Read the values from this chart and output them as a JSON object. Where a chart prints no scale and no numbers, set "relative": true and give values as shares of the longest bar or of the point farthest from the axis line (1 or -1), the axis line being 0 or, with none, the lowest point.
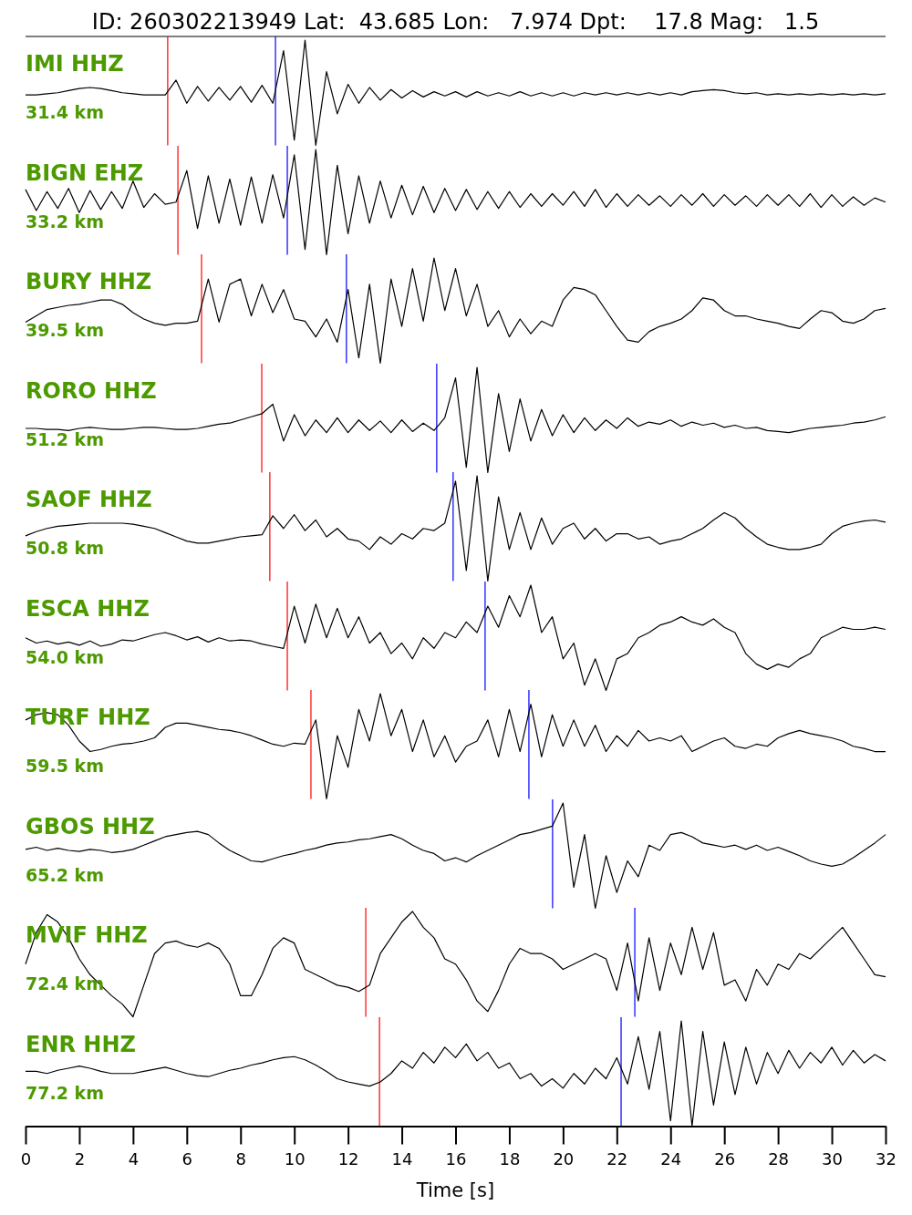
{
  "chart_data": [
    {
      "type": "line",
      "title": "IMI HHZ",
      "subtitle": "31.4 km",
      "annotations": [
        "ID: 260302213949 Lat:  43.685 Lon:   7.974 Dpt:    17.8 Mag:   1.5"
      ],
      "relative": true,
      "xlim": [
        0,
        32
      ],
      "tick_labels": false,
      "x": [
        0,
        0.4,
        0.8,
        1.2,
        1.6,
        2,
        2.4,
        2.8,
        3.2,
        3.6,
        4,
        4.4,
        4.8,
        5.2,
        5.6,
        6,
        6.4,
        6.8,
        7.2,
        7.6,
        8,
        8.4,
        8.8,
        9.2,
        9.6,
        10,
        10.4,
        10.8,
        11.2,
        11.6,
        12,
        12.4,
        12.8,
        13.2,
        13.6,
        14,
        14.4,
        14.8,
        15.2,
        15.6,
        16,
        16.4,
        16.8,
        17.2,
        17.6,
        18,
        18.4,
        18.8,
        19.2,
        19.6,
        20,
        20.4,
        20.8,
        21.2,
        21.6,
        22,
        22.4,
        22.8,
        23.2,
        23.6,
        24,
        24.4,
        24.8,
        25.2,
        25.6,
        26,
        26.4,
        26.8,
        27.2,
        27.6,
        28,
        28.4,
        28.8,
        29.2,
        29.6,
        30,
        30.4,
        30.8,
        31.2,
        31.6,
        32
      ],
      "series": [
        {
          "color": "#000000",
          "values": [
            0.48,
            0.48,
            0.49,
            0.5,
            0.52,
            0.54,
            0.55,
            0.54,
            0.52,
            0.5,
            0.49,
            0.48,
            0.48,
            0.48,
            0.62,
            0.4,
            0.56,
            0.42,
            0.55,
            0.43,
            0.56,
            0.41,
            0.57,
            0.4,
            0.9,
            0.05,
            1,
            0,
            0.7,
            0.3,
            0.58,
            0.4,
            0.55,
            0.43,
            0.53,
            0.45,
            0.52,
            0.46,
            0.51,
            0.47,
            0.51,
            0.46,
            0.51,
            0.47,
            0.5,
            0.47,
            0.51,
            0.47,
            0.5,
            0.47,
            0.5,
            0.47,
            0.5,
            0.48,
            0.5,
            0.48,
            0.5,
            0.48,
            0.5,
            0.48,
            0.5,
            0.48,
            0.51,
            0.52,
            0.53,
            0.52,
            0.5,
            0.49,
            0.5,
            0.48,
            0.49,
            0.48,
            0.49,
            0.48,
            0.49,
            0.48,
            0.49,
            0.48,
            0.49,
            0.48,
            0.49
          ]
        }
      ],
      "ref_lines": [
        {
          "axis": "x",
          "value": 5.29,
          "color": "#ff0000"
        },
        {
          "axis": "x",
          "value": 9.3,
          "color": "#0000ff"
        }
      ]
    },
    {
      "type": "line",
      "title": "BIGN EHZ",
      "subtitle": "33.2 km",
      "relative": true,
      "xlim": [
        0,
        32
      ],
      "tick_labels": false,
      "x": [
        0,
        0.4,
        0.8,
        1.2,
        1.6,
        2,
        2.4,
        2.8,
        3.2,
        3.6,
        4,
        4.4,
        4.8,
        5.2,
        5.6,
        6,
        6.4,
        6.8,
        7.2,
        7.6,
        8,
        8.4,
        8.8,
        9.2,
        9.6,
        10,
        10.4,
        10.8,
        11.2,
        11.6,
        12,
        12.4,
        12.8,
        13.2,
        13.6,
        14,
        14.4,
        14.8,
        15.2,
        15.6,
        16,
        16.4,
        16.8,
        17.2,
        17.6,
        18,
        18.4,
        18.8,
        19.2,
        19.6,
        20,
        20.4,
        20.8,
        21.2,
        21.6,
        22,
        22.4,
        22.8,
        23.2,
        23.6,
        24,
        24.4,
        24.8,
        25.2,
        25.6,
        26,
        26.4,
        26.8,
        27.2,
        27.6,
        28,
        28.4,
        28.8,
        29.2,
        29.6,
        30,
        30.4,
        30.8,
        31.2,
        31.6,
        32
      ],
      "series": [
        {
          "color": "#000000",
          "values": [
            0.62,
            0.42,
            0.6,
            0.44,
            0.63,
            0.4,
            0.61,
            0.43,
            0.6,
            0.44,
            0.7,
            0.45,
            0.58,
            0.48,
            0.5,
            0.8,
            0.25,
            0.75,
            0.3,
            0.72,
            0.28,
            0.74,
            0.3,
            0.76,
            0.35,
            0.95,
            0.05,
            1,
            0,
            0.85,
            0.2,
            0.75,
            0.3,
            0.7,
            0.35,
            0.66,
            0.38,
            0.65,
            0.4,
            0.63,
            0.42,
            0.62,
            0.43,
            0.6,
            0.44,
            0.6,
            0.45,
            0.58,
            0.46,
            0.58,
            0.47,
            0.6,
            0.46,
            0.62,
            0.45,
            0.58,
            0.46,
            0.57,
            0.47,
            0.56,
            0.46,
            0.57,
            0.47,
            0.58,
            0.46,
            0.57,
            0.47,
            0.56,
            0.46,
            0.57,
            0.47,
            0.57,
            0.46,
            0.58,
            0.45,
            0.57,
            0.46,
            0.55,
            0.47,
            0.54,
            0.5
          ]
        }
      ],
      "ref_lines": [
        {
          "axis": "x",
          "value": 5.67,
          "color": "#ff0000"
        },
        {
          "axis": "x",
          "value": 9.74,
          "color": "#0000ff"
        }
      ]
    },
    {
      "type": "line",
      "title": "BURY HHZ",
      "subtitle": "39.5 km",
      "relative": true,
      "xlim": [
        0,
        32
      ],
      "tick_labels": false,
      "x": [
        0,
        0.4,
        0.8,
        1.2,
        1.6,
        2,
        2.4,
        2.8,
        3.2,
        3.6,
        4,
        4.4,
        4.8,
        5.2,
        5.6,
        6,
        6.4,
        6.8,
        7.2,
        7.6,
        8,
        8.4,
        8.8,
        9.2,
        9.6,
        10,
        10.4,
        10.8,
        11.2,
        11.6,
        12,
        12.4,
        12.8,
        13.2,
        13.6,
        14,
        14.4,
        14.8,
        15.2,
        15.6,
        16,
        16.4,
        16.8,
        17.2,
        17.6,
        18,
        18.4,
        18.8,
        19.2,
        19.6,
        20,
        20.4,
        20.8,
        21.2,
        21.6,
        22,
        22.4,
        22.8,
        23.2,
        23.6,
        24,
        24.4,
        24.8,
        25.2,
        25.6,
        26,
        26.4,
        26.8,
        27.2,
        27.6,
        28,
        28.4,
        28.8,
        29.2,
        29.6,
        30,
        30.4,
        30.8,
        31.2,
        31.6,
        32
      ],
      "series": [
        {
          "color": "#000000",
          "values": [
            0.39,
            0.45,
            0.51,
            0.53,
            0.55,
            0.56,
            0.58,
            0.6,
            0.6,
            0.56,
            0.48,
            0.42,
            0.38,
            0.36,
            0.38,
            0.38,
            0.4,
            0.8,
            0.39,
            0.75,
            0.8,
            0.45,
            0.75,
            0.48,
            0.7,
            0.42,
            0.4,
            0.25,
            0.42,
            0.2,
            0.7,
            0.05,
            0.75,
            0,
            0.8,
            0.35,
            0.9,
            0.4,
            1,
            0.5,
            0.9,
            0.45,
            0.75,
            0.35,
            0.5,
            0.25,
            0.42,
            0.28,
            0.4,
            0.35,
            0.6,
            0.72,
            0.7,
            0.65,
            0.5,
            0.35,
            0.22,
            0.2,
            0.3,
            0.35,
            0.38,
            0.42,
            0.5,
            0.62,
            0.6,
            0.5,
            0.45,
            0.45,
            0.42,
            0.4,
            0.38,
            0.35,
            0.33,
            0.42,
            0.5,
            0.48,
            0.4,
            0.38,
            0.42,
            0.5,
            0.52
          ]
        }
      ],
      "ref_lines": [
        {
          "axis": "x",
          "value": 6.55,
          "color": "#ff0000"
        },
        {
          "axis": "x",
          "value": 11.94,
          "color": "#0000ff"
        }
      ]
    },
    {
      "type": "line",
      "title": "RORO HHZ",
      "subtitle": "51.2 km",
      "relative": true,
      "xlim": [
        0,
        32
      ],
      "tick_labels": false,
      "x": [
        0,
        0.4,
        0.8,
        1.2,
        1.6,
        2,
        2.4,
        2.8,
        3.2,
        3.6,
        4,
        4.4,
        4.8,
        5.2,
        5.6,
        6,
        6.4,
        6.8,
        7.2,
        7.6,
        8,
        8.4,
        8.8,
        9.2,
        9.6,
        10,
        10.4,
        10.8,
        11.2,
        11.6,
        12,
        12.4,
        12.8,
        13.2,
        13.6,
        14,
        14.4,
        14.8,
        15.2,
        15.6,
        16,
        16.4,
        16.8,
        17.2,
        17.6,
        18,
        18.4,
        18.8,
        19.2,
        19.6,
        20,
        20.4,
        20.8,
        21.2,
        21.6,
        22,
        22.4,
        22.8,
        23.2,
        23.6,
        24,
        24.4,
        24.8,
        25.2,
        25.6,
        26,
        26.4,
        26.8,
        27.2,
        27.6,
        28,
        28.4,
        28.8,
        29.2,
        29.6,
        30,
        30.4,
        30.8,
        31.2,
        31.6,
        32
      ],
      "series": [
        {
          "color": "#000000",
          "values": [
            0.42,
            0.42,
            0.41,
            0.41,
            0.4,
            0.42,
            0.43,
            0.42,
            0.41,
            0.41,
            0.42,
            0.43,
            0.43,
            0.42,
            0.41,
            0.41,
            0.42,
            0.44,
            0.46,
            0.47,
            0.5,
            0.53,
            0.56,
            0.65,
            0.3,
            0.55,
            0.35,
            0.5,
            0.38,
            0.52,
            0.38,
            0.5,
            0.4,
            0.49,
            0.38,
            0.5,
            0.39,
            0.47,
            0.4,
            0.52,
            0.9,
            0.05,
            1,
            0,
            0.75,
            0.2,
            0.7,
            0.3,
            0.6,
            0.35,
            0.55,
            0.38,
            0.52,
            0.4,
            0.5,
            0.42,
            0.52,
            0.44,
            0.48,
            0.46,
            0.5,
            0.44,
            0.48,
            0.45,
            0.47,
            0.43,
            0.45,
            0.42,
            0.43,
            0.4,
            0.39,
            0.38,
            0.4,
            0.42,
            0.43,
            0.44,
            0.45,
            0.47,
            0.48,
            0.5,
            0.53
          ]
        }
      ],
      "ref_lines": [
        {
          "axis": "x",
          "value": 8.79,
          "color": "#ff0000"
        },
        {
          "axis": "x",
          "value": 15.3,
          "color": "#0000ff"
        }
      ]
    },
    {
      "type": "line",
      "title": "SAOF HHZ",
      "subtitle": "50.8 km",
      "relative": true,
      "xlim": [
        0,
        32
      ],
      "tick_labels": false,
      "x": [
        0,
        0.4,
        0.8,
        1.2,
        1.6,
        2,
        2.4,
        2.8,
        3.2,
        3.6,
        4,
        4.4,
        4.8,
        5.2,
        5.6,
        6,
        6.4,
        6.8,
        7.2,
        7.6,
        8,
        8.4,
        8.8,
        9.2,
        9.6,
        10,
        10.4,
        10.8,
        11.2,
        11.6,
        12,
        12.4,
        12.8,
        13.2,
        13.6,
        14,
        14.4,
        14.8,
        15.2,
        15.6,
        16,
        16.4,
        16.8,
        17.2,
        17.6,
        18,
        18.4,
        18.8,
        19.2,
        19.6,
        20,
        20.4,
        20.8,
        21.2,
        21.6,
        22,
        22.4,
        22.8,
        23.2,
        23.6,
        24,
        24.4,
        24.8,
        25.2,
        25.6,
        26,
        26.4,
        26.8,
        27.2,
        27.6,
        28,
        28.4,
        28.8,
        29.2,
        29.6,
        30,
        30.4,
        30.8,
        31.2,
        31.6,
        32
      ],
      "series": [
        {
          "color": "#000000",
          "values": [
            0.43,
            0.47,
            0.5,
            0.52,
            0.53,
            0.54,
            0.55,
            0.55,
            0.55,
            0.55,
            0.54,
            0.52,
            0.5,
            0.46,
            0.42,
            0.38,
            0.36,
            0.36,
            0.38,
            0.4,
            0.42,
            0.43,
            0.44,
            0.62,
            0.5,
            0.63,
            0.48,
            0.58,
            0.42,
            0.5,
            0.4,
            0.38,
            0.3,
            0.42,
            0.35,
            0.45,
            0.4,
            0.5,
            0.48,
            0.55,
            0.95,
            0.1,
            1,
            0,
            0.8,
            0.3,
            0.65,
            0.3,
            0.6,
            0.35,
            0.5,
            0.55,
            0.4,
            0.5,
            0.38,
            0.45,
            0.45,
            0.4,
            0.42,
            0.35,
            0.38,
            0.4,
            0.45,
            0.5,
            0.58,
            0.65,
            0.6,
            0.5,
            0.42,
            0.35,
            0.32,
            0.3,
            0.3,
            0.32,
            0.35,
            0.45,
            0.52,
            0.55,
            0.57,
            0.58,
            0.56
          ]
        }
      ],
      "ref_lines": [
        {
          "axis": "x",
          "value": 9.09,
          "color": "#ff0000"
        },
        {
          "axis": "x",
          "value": 15.91,
          "color": "#0000ff"
        }
      ]
    },
    {
      "type": "line",
      "title": "ESCA HHZ",
      "subtitle": "54.0 km",
      "relative": true,
      "xlim": [
        0,
        32
      ],
      "tick_labels": false,
      "x": [
        0,
        0.4,
        0.8,
        1.2,
        1.6,
        2,
        2.4,
        2.8,
        3.2,
        3.6,
        4,
        4.4,
        4.8,
        5.2,
        5.6,
        6,
        6.4,
        6.8,
        7.2,
        7.6,
        8,
        8.4,
        8.8,
        9.2,
        9.6,
        10,
        10.4,
        10.8,
        11.2,
        11.6,
        12,
        12.4,
        12.8,
        13.2,
        13.6,
        14,
        14.4,
        14.8,
        15.2,
        15.6,
        16,
        16.4,
        16.8,
        17.2,
        17.6,
        18,
        18.4,
        18.8,
        19.2,
        19.6,
        20,
        20.4,
        20.8,
        21.2,
        21.6,
        22,
        22.4,
        22.8,
        23.2,
        23.6,
        24,
        24.4,
        24.8,
        25.2,
        25.6,
        26,
        26.4,
        26.8,
        27.2,
        27.6,
        28,
        28.4,
        28.8,
        29.2,
        29.6,
        30,
        30.4,
        30.8,
        31.2,
        31.6,
        32
      ],
      "series": [
        {
          "color": "#000000",
          "values": [
            0.5,
            0.45,
            0.47,
            0.44,
            0.46,
            0.43,
            0.47,
            0.42,
            0.44,
            0.48,
            0.47,
            0.5,
            0.53,
            0.55,
            0.52,
            0.48,
            0.51,
            0.46,
            0.5,
            0.47,
            0.48,
            0.47,
            0.44,
            0.42,
            0.4,
            0.8,
            0.45,
            0.82,
            0.5,
            0.78,
            0.5,
            0.7,
            0.45,
            0.55,
            0.35,
            0.45,
            0.3,
            0.5,
            0.4,
            0.55,
            0.5,
            0.65,
            0.55,
            0.8,
            0.6,
            0.9,
            0.7,
            1,
            0.55,
            0.7,
            0.3,
            0.45,
            0.05,
            0.3,
            0,
            0.3,
            0.35,
            0.5,
            0.55,
            0.62,
            0.65,
            0.7,
            0.65,
            0.62,
            0.68,
            0.6,
            0.55,
            0.35,
            0.25,
            0.2,
            0.25,
            0.22,
            0.3,
            0.35,
            0.5,
            0.55,
            0.6,
            0.58,
            0.58,
            0.6,
            0.58
          ]
        }
      ],
      "ref_lines": [
        {
          "axis": "x",
          "value": 9.74,
          "color": "#ff0000"
        },
        {
          "axis": "x",
          "value": 17.1,
          "color": "#0000ff"
        }
      ]
    },
    {
      "type": "line",
      "title": "TURF HHZ",
      "subtitle": "59.5 km",
      "relative": true,
      "xlim": [
        0,
        32
      ],
      "tick_labels": false,
      "x": [
        0,
        0.4,
        0.8,
        1.2,
        1.6,
        2,
        2.4,
        2.8,
        3.2,
        3.6,
        4,
        4.4,
        4.8,
        5.2,
        5.6,
        6,
        6.4,
        6.8,
        7.2,
        7.6,
        8,
        8.4,
        8.8,
        9.2,
        9.6,
        10,
        10.4,
        10.8,
        11.2,
        11.6,
        12,
        12.4,
        12.8,
        13.2,
        13.6,
        14,
        14.4,
        14.8,
        15.2,
        15.6,
        16,
        16.4,
        16.8,
        17.2,
        17.6,
        18,
        18.4,
        18.8,
        19.2,
        19.6,
        20,
        20.4,
        20.8,
        21.2,
        21.6,
        22,
        22.4,
        22.8,
        23.2,
        23.6,
        24,
        24.4,
        24.8,
        25.2,
        25.6,
        26,
        26.4,
        26.8,
        27.2,
        27.6,
        28,
        28.4,
        28.8,
        29.2,
        29.6,
        30,
        30.4,
        30.8,
        31.2,
        31.6,
        32
      ],
      "series": [
        {
          "color": "#000000",
          "values": [
            0.75,
            0.8,
            0.82,
            0.8,
            0.7,
            0.55,
            0.45,
            0.47,
            0.5,
            0.52,
            0.53,
            0.55,
            0.58,
            0.68,
            0.72,
            0.72,
            0.7,
            0.68,
            0.66,
            0.65,
            0.63,
            0.6,
            0.56,
            0.52,
            0.5,
            0.53,
            0.52,
            0.75,
            0,
            0.6,
            0.3,
            0.85,
            0.55,
            1,
            0.6,
            0.85,
            0.45,
            0.75,
            0.4,
            0.6,
            0.35,
            0.5,
            0.55,
            0.75,
            0.4,
            0.85,
            0.45,
            0.9,
            0.4,
            0.8,
            0.5,
            0.75,
            0.5,
            0.7,
            0.45,
            0.6,
            0.5,
            0.65,
            0.55,
            0.58,
            0.55,
            0.6,
            0.45,
            0.5,
            0.55,
            0.58,
            0.5,
            0.48,
            0.52,
            0.5,
            0.58,
            0.62,
            0.65,
            0.62,
            0.6,
            0.58,
            0.55,
            0.5,
            0.48,
            0.45,
            0.45
          ]
        }
      ],
      "ref_lines": [
        {
          "axis": "x",
          "value": 10.62,
          "color": "#ff0000"
        },
        {
          "axis": "x",
          "value": 18.73,
          "color": "#0000ff"
        }
      ]
    },
    {
      "type": "line",
      "title": "GBOS HHZ",
      "subtitle": "65.2 km",
      "relative": true,
      "xlim": [
        0,
        32
      ],
      "tick_labels": false,
      "x": [
        0,
        0.4,
        0.8,
        1.2,
        1.6,
        2,
        2.4,
        2.8,
        3.2,
        3.6,
        4,
        4.4,
        4.8,
        5.2,
        5.6,
        6,
        6.4,
        6.8,
        7.2,
        7.6,
        8,
        8.4,
        8.8,
        9.2,
        9.6,
        10,
        10.4,
        10.8,
        11.2,
        11.6,
        12,
        12.4,
        12.8,
        13.2,
        13.6,
        14,
        14.4,
        14.8,
        15.2,
        15.6,
        16,
        16.4,
        16.8,
        17.2,
        17.6,
        18,
        18.4,
        18.8,
        19.2,
        19.6,
        20,
        20.4,
        20.8,
        21.2,
        21.6,
        22,
        22.4,
        22.8,
        23.2,
        23.6,
        24,
        24.4,
        24.8,
        25.2,
        25.6,
        26,
        26.4,
        26.8,
        27.2,
        27.6,
        28,
        28.4,
        28.8,
        29.2,
        29.6,
        30,
        30.4,
        30.8,
        31.2,
        31.6,
        32
      ],
      "series": [
        {
          "color": "#000000",
          "values": [
            0.56,
            0.58,
            0.55,
            0.57,
            0.55,
            0.54,
            0.56,
            0.55,
            0.53,
            0.54,
            0.56,
            0.6,
            0.64,
            0.68,
            0.7,
            0.72,
            0.73,
            0.7,
            0.62,
            0.55,
            0.5,
            0.45,
            0.44,
            0.47,
            0.5,
            0.52,
            0.55,
            0.57,
            0.6,
            0.62,
            0.63,
            0.65,
            0.66,
            0.68,
            0.7,
            0.66,
            0.6,
            0.55,
            0.52,
            0.45,
            0.48,
            0.44,
            0.5,
            0.55,
            0.6,
            0.65,
            0.7,
            0.72,
            0.75,
            0.78,
            1,
            0.2,
            0.7,
            0,
            0.5,
            0.15,
            0.45,
            0.3,
            0.6,
            0.55,
            0.7,
            0.72,
            0.68,
            0.62,
            0.6,
            0.58,
            0.6,
            0.56,
            0.6,
            0.55,
            0.58,
            0.54,
            0.5,
            0.45,
            0.42,
            0.4,
            0.42,
            0.48,
            0.55,
            0.62,
            0.7
          ]
        }
      ],
      "ref_lines": [
        {
          "axis": "x",
          "value": 19.61,
          "color": "#0000ff"
        }
      ]
    },
    {
      "type": "line",
      "title": "MVIF HHZ",
      "subtitle": "72.4 km",
      "relative": true,
      "xlim": [
        0,
        32
      ],
      "tick_labels": false,
      "x": [
        0,
        0.4,
        0.8,
        1.2,
        1.6,
        2,
        2.4,
        2.8,
        3.2,
        3.6,
        4,
        4.4,
        4.8,
        5.2,
        5.6,
        6,
        6.4,
        6.8,
        7.2,
        7.6,
        8,
        8.4,
        8.8,
        9.2,
        9.6,
        10,
        10.4,
        10.8,
        11.2,
        11.6,
        12,
        12.4,
        12.8,
        13.2,
        13.6,
        14,
        14.4,
        14.8,
        15.2,
        15.6,
        16,
        16.4,
        16.8,
        17.2,
        17.6,
        18,
        18.4,
        18.8,
        19.2,
        19.6,
        20,
        20.4,
        20.8,
        21.2,
        21.6,
        22,
        22.4,
        22.8,
        23.2,
        23.6,
        24,
        24.4,
        24.8,
        25.2,
        25.6,
        26,
        26.4,
        26.8,
        27.2,
        27.6,
        28,
        28.4,
        28.8,
        29.2,
        29.6,
        30,
        30.4,
        30.8,
        31.2,
        31.6,
        32
      ],
      "series": [
        {
          "color": "#000000",
          "values": [
            0.5,
            0.8,
            0.97,
            0.9,
            0.75,
            0.55,
            0.4,
            0.3,
            0.2,
            0.12,
            0,
            0.3,
            0.6,
            0.7,
            0.72,
            0.68,
            0.66,
            0.7,
            0.65,
            0.5,
            0.2,
            0.2,
            0.4,
            0.65,
            0.75,
            0.7,
            0.45,
            0.4,
            0.35,
            0.3,
            0.28,
            0.24,
            0.3,
            0.6,
            0.75,
            0.9,
            1,
            0.85,
            0.75,
            0.55,
            0.5,
            0.35,
            0.15,
            0.05,
            0.25,
            0.5,
            0.65,
            0.6,
            0.6,
            0.55,
            0.45,
            0.5,
            0.55,
            0.6,
            0.55,
            0.25,
            0.7,
            0.15,
            0.75,
            0.25,
            0.7,
            0.4,
            0.85,
            0.45,
            0.8,
            0.3,
            0.35,
            0.15,
            0.45,
            0.3,
            0.5,
            0.45,
            0.6,
            0.55,
            0.65,
            0.75,
            0.85,
            0.7,
            0.55,
            0.4,
            0.38
          ]
        }
      ],
      "ref_lines": [
        {
          "axis": "x",
          "value": 12.66,
          "color": "#ff0000"
        },
        {
          "axis": "x",
          "value": 22.67,
          "color": "#0000ff"
        }
      ]
    },
    {
      "type": "line",
      "title": "ENR HHZ",
      "subtitle": "77.2 km",
      "xlabel": "Time [s]",
      "relative": true,
      "xlim": [
        0,
        32
      ],
      "tick_labels": "x",
      "x": [
        0,
        0.4,
        0.8,
        1.2,
        1.6,
        2,
        2.4,
        2.8,
        3.2,
        3.6,
        4,
        4.4,
        4.8,
        5.2,
        5.6,
        6,
        6.4,
        6.8,
        7.2,
        7.6,
        8,
        8.4,
        8.8,
        9.2,
        9.6,
        10,
        10.4,
        10.8,
        11.2,
        11.6,
        12,
        12.4,
        12.8,
        13.2,
        13.6,
        14,
        14.4,
        14.8,
        15.2,
        15.6,
        16,
        16.4,
        16.8,
        17.2,
        17.6,
        18,
        18.4,
        18.8,
        19.2,
        19.6,
        20,
        20.4,
        20.8,
        21.2,
        21.6,
        22,
        22.4,
        22.8,
        23.2,
        23.6,
        24,
        24.4,
        24.8,
        25.2,
        25.6,
        26,
        26.4,
        26.8,
        27.2,
        27.6,
        28,
        28.4,
        28.8,
        29.2,
        29.6,
        30,
        30.4,
        30.8,
        31.2,
        31.6,
        32
      ],
      "series": [
        {
          "color": "#000000",
          "values": [
            0.52,
            0.52,
            0.5,
            0.53,
            0.55,
            0.57,
            0.55,
            0.52,
            0.5,
            0.5,
            0.5,
            0.52,
            0.54,
            0.56,
            0.53,
            0.5,
            0.48,
            0.47,
            0.5,
            0.53,
            0.55,
            0.58,
            0.6,
            0.63,
            0.65,
            0.66,
            0.63,
            0.58,
            0.52,
            0.45,
            0.42,
            0.4,
            0.38,
            0.42,
            0.5,
            0.62,
            0.55,
            0.7,
            0.6,
            0.75,
            0.65,
            0.78,
            0.62,
            0.7,
            0.55,
            0.6,
            0.45,
            0.5,
            0.38,
            0.45,
            0.36,
            0.5,
            0.4,
            0.55,
            0.45,
            0.65,
            0.4,
            0.85,
            0.35,
            0.9,
            0.05,
            1,
            0,
            0.9,
            0.2,
            0.8,
            0.3,
            0.75,
            0.4,
            0.7,
            0.5,
            0.72,
            0.55,
            0.7,
            0.6,
            0.75,
            0.58,
            0.72,
            0.6,
            0.68,
            0.62
          ]
        }
      ],
      "ref_lines": [
        {
          "axis": "x",
          "value": 13.17,
          "color": "#ff0000"
        },
        {
          "axis": "x",
          "value": 22.16,
          "color": "#0000ff"
        }
      ],
      "xticks": [
        0,
        2,
        4,
        6,
        8,
        10,
        12,
        14,
        16,
        18,
        20,
        22,
        24,
        26,
        28,
        30,
        32
      ]
    }
  ]
}
